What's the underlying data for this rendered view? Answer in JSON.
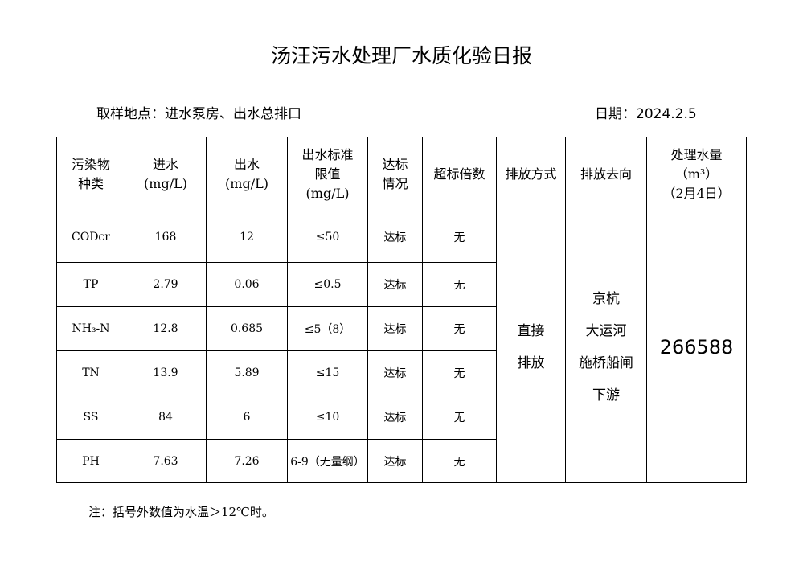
{
  "header": {
    "title": "汤汪污水处理厂水质化验日报",
    "location": "取样地点：进水泵房、出水总排口",
    "date": "日期：2024.2.5"
  },
  "table": {
    "columns": [
      "污染物\n种类",
      "进水\n(mg/L)",
      "出水\n(mg/L)",
      "出水标准\n限值\n(mg/L)",
      "达标\n情况",
      "超标倍数",
      "排放方式",
      "排放去向",
      "处理水量\n（m³）\n（2月4日）"
    ],
    "rows": [
      [
        "CODcr",
        "168",
        "12",
        "≤50",
        "达标",
        "无"
      ],
      [
        "TP",
        "2.79",
        "0.06",
        "≤0.5",
        "达标",
        "无"
      ],
      [
        "NH₃-N",
        "12.8",
        "0.685",
        "≤5（8）",
        "达标",
        "无"
      ],
      [
        "TN",
        "13.9",
        "5.89",
        "≤15",
        "达标",
        "无"
      ],
      [
        "SS",
        "84",
        "6",
        "≤10",
        "达标",
        "无"
      ],
      [
        "PH",
        "7.63",
        "7.26",
        "6-9（无量纲）",
        "达标",
        "无"
      ]
    ],
    "discharge_method": "直接\n排放",
    "discharge_destination": "京杭\n大运河\n施桥船闸\n下游",
    "treated_volume": "266588"
  },
  "footer": {
    "note": "注：括号外数值为水温＞12℃时。"
  }
}
